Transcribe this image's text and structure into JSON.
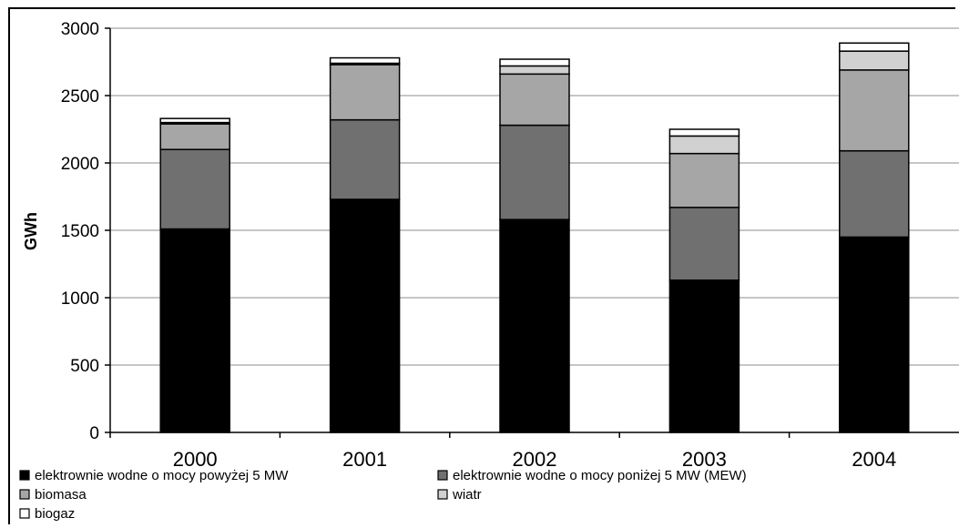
{
  "chart_data": {
    "type": "bar",
    "stacked": true,
    "categories": [
      "2000",
      "2001",
      "2002",
      "2003",
      "2004"
    ],
    "ylabel": "GWh",
    "ylim": [
      0,
      3000
    ],
    "yticks": [
      0,
      500,
      1000,
      1500,
      2000,
      2500,
      3000
    ],
    "grid": true,
    "legend_position": "bottom",
    "series": [
      {
        "name": "elektrownie wodne o mocy powyżej 5 MW",
        "color": "#000000",
        "values": [
          1510,
          1730,
          1580,
          1130,
          1450
        ]
      },
      {
        "name": "elektrownie wodne o mocy poniżej 5 MW (MEW)",
        "color": "#707070",
        "values": [
          590,
          590,
          700,
          540,
          640
        ]
      },
      {
        "name": "biomasa",
        "color": "#a6a6a6",
        "values": [
          190,
          410,
          380,
          400,
          600
        ]
      },
      {
        "name": "wiatr",
        "color": "#d0d0d0",
        "values": [
          10,
          10,
          60,
          130,
          140
        ]
      },
      {
        "name": "biogaz",
        "color": "#ffffff",
        "values": [
          30,
          40,
          50,
          50,
          60
        ]
      }
    ]
  }
}
